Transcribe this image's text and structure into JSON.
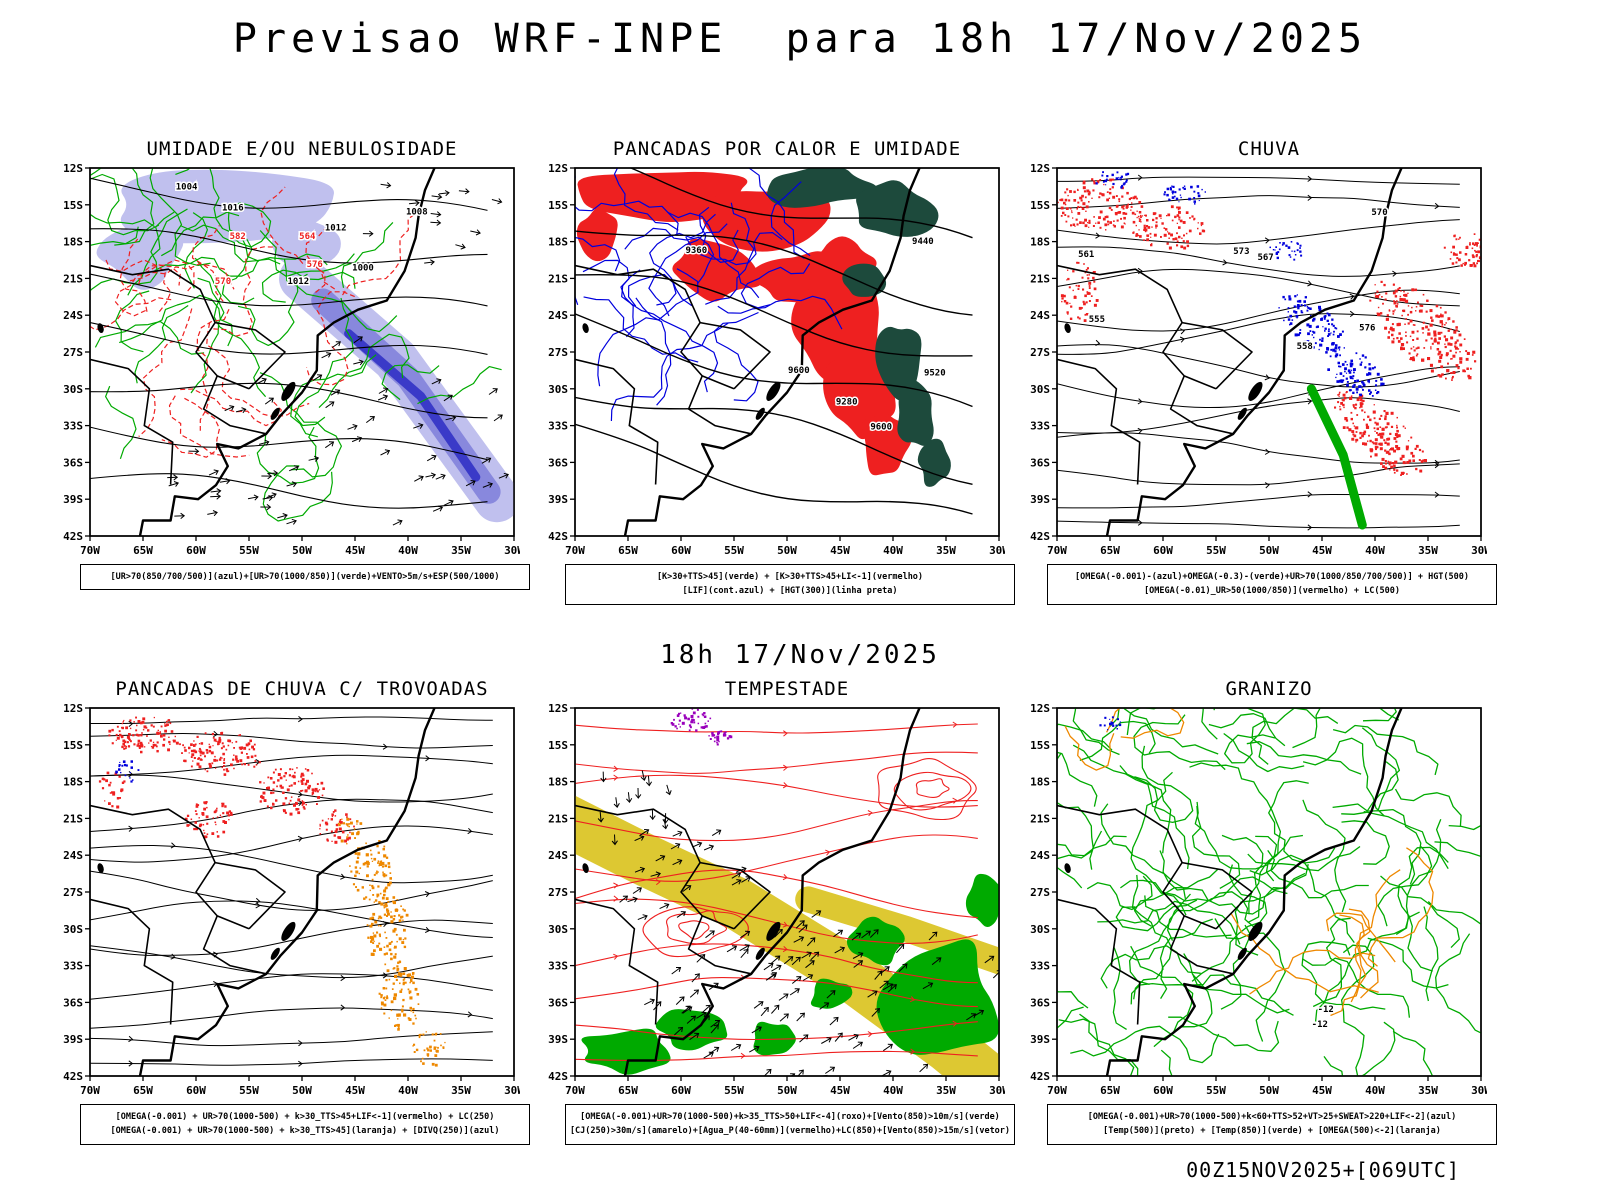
{
  "page": {
    "title": "Previsao WRF-INPE  para 18h 17/Nov/2025",
    "center_date": "18h 17/Nov/2025",
    "footer_timestamp": "00Z15NOV2025+[069UTC]"
  },
  "axes": {
    "lat_labels": [
      "12S",
      "15S",
      "18S",
      "21S",
      "24S",
      "27S",
      "30S",
      "33S",
      "36S",
      "39S",
      "42S"
    ],
    "lon_labels": [
      "70W",
      "65W",
      "60W",
      "55W",
      "50W",
      "45W",
      "40W",
      "35W",
      "30W"
    ]
  },
  "colors": {
    "azul": "#0000dd",
    "verde": "#00aa00",
    "vermelho": "#ee2020",
    "laranja": "#ee8800",
    "amarelo": "#ddc832",
    "roxo": "#9900bb",
    "preto": "#000000",
    "darkteal": "#1d4a3c",
    "lilac": "#c0c0ee",
    "medpurple": "#8888dd",
    "darkblue": "#3a3ac8"
  },
  "panels": [
    {
      "id": "umidade",
      "title": "UMIDADE E/OU NEBULOSIDADE",
      "caption_lines": [
        "[UR>70(850/700/500)](azul)+[UR>70(1000/850)](verde)+VENTO>5m/s+ESP(500/1000)"
      ],
      "labels_black": [
        "1008",
        "1012",
        "1016",
        "1004",
        "1000",
        "1012"
      ],
      "labels_red": [
        "576",
        "570",
        "564",
        "582"
      ]
    },
    {
      "id": "pancadas-calor",
      "title": "PANCADAS POR CALOR E UMIDADE",
      "caption_lines": [
        "[K>30+TTS>45](verde) + [K>30+TTS>45+LI<-1](vermelho)",
        "[LIF](cont.azul) + [HGT(300)](linha preta)"
      ],
      "labels_black": [
        "9600",
        "9520",
        "9440",
        "9360",
        "9280",
        "9600"
      ],
      "labels_red": []
    },
    {
      "id": "chuva",
      "title": "CHUVA",
      "caption_lines": [
        "[OMEGA(-0.001)-(azul)+OMEGA(-0.3)-(verde)+UR>70(1000/850/700/500)] + HGT(500)",
        "[OMEGA(-0.01)_UR>50(1000/850)](vermelho) + LC(500)"
      ],
      "labels_black": [
        "576",
        "573",
        "570",
        "567",
        "561",
        "558",
        "555"
      ],
      "labels_red": []
    },
    {
      "id": "trovoadas",
      "title": "PANCADAS DE CHUVA C/ TROVOADAS",
      "caption_lines": [
        "[OMEGA(-0.001) + UR>70(1000-500) + k>30_TTS>45+LIF<-1](vermelho) + LC(250)",
        "[OMEGA(-0.001) + UR>70(1000-500) + k>30_TTS>45](laranja) + [DIVQ(250)](azul)"
      ],
      "labels_black": [],
      "labels_red": []
    },
    {
      "id": "tempestade",
      "title": "TEMPESTADE",
      "caption_lines": [
        "[OMEGA(-0.001)+UR>70(1000-500)+k>35_TTS>50+LIF<-4](roxo)+[Vento(850)>10m/s](verde)",
        "[CJ(250)>30m/s](amarelo)+[Agua_P(40-60mm)](vermelho)+LC(850)+[Vento(850)>15m/s](vetor)"
      ],
      "labels_black": [],
      "labels_red": []
    },
    {
      "id": "granizo",
      "title": "GRANIZO",
      "caption_lines": [
        "[OMEGA(-0.001)+UR>70(1000-500)+k<60+TTS>52+VT>25+SWEAT>220+LIF<-2](azul)",
        "[Temp(500)](preto) + [Temp(850)](verde) + [OMEGA(500)<-2](laranja)"
      ],
      "labels_black": [
        "-12",
        "-12"
      ],
      "labels_red": []
    }
  ]
}
